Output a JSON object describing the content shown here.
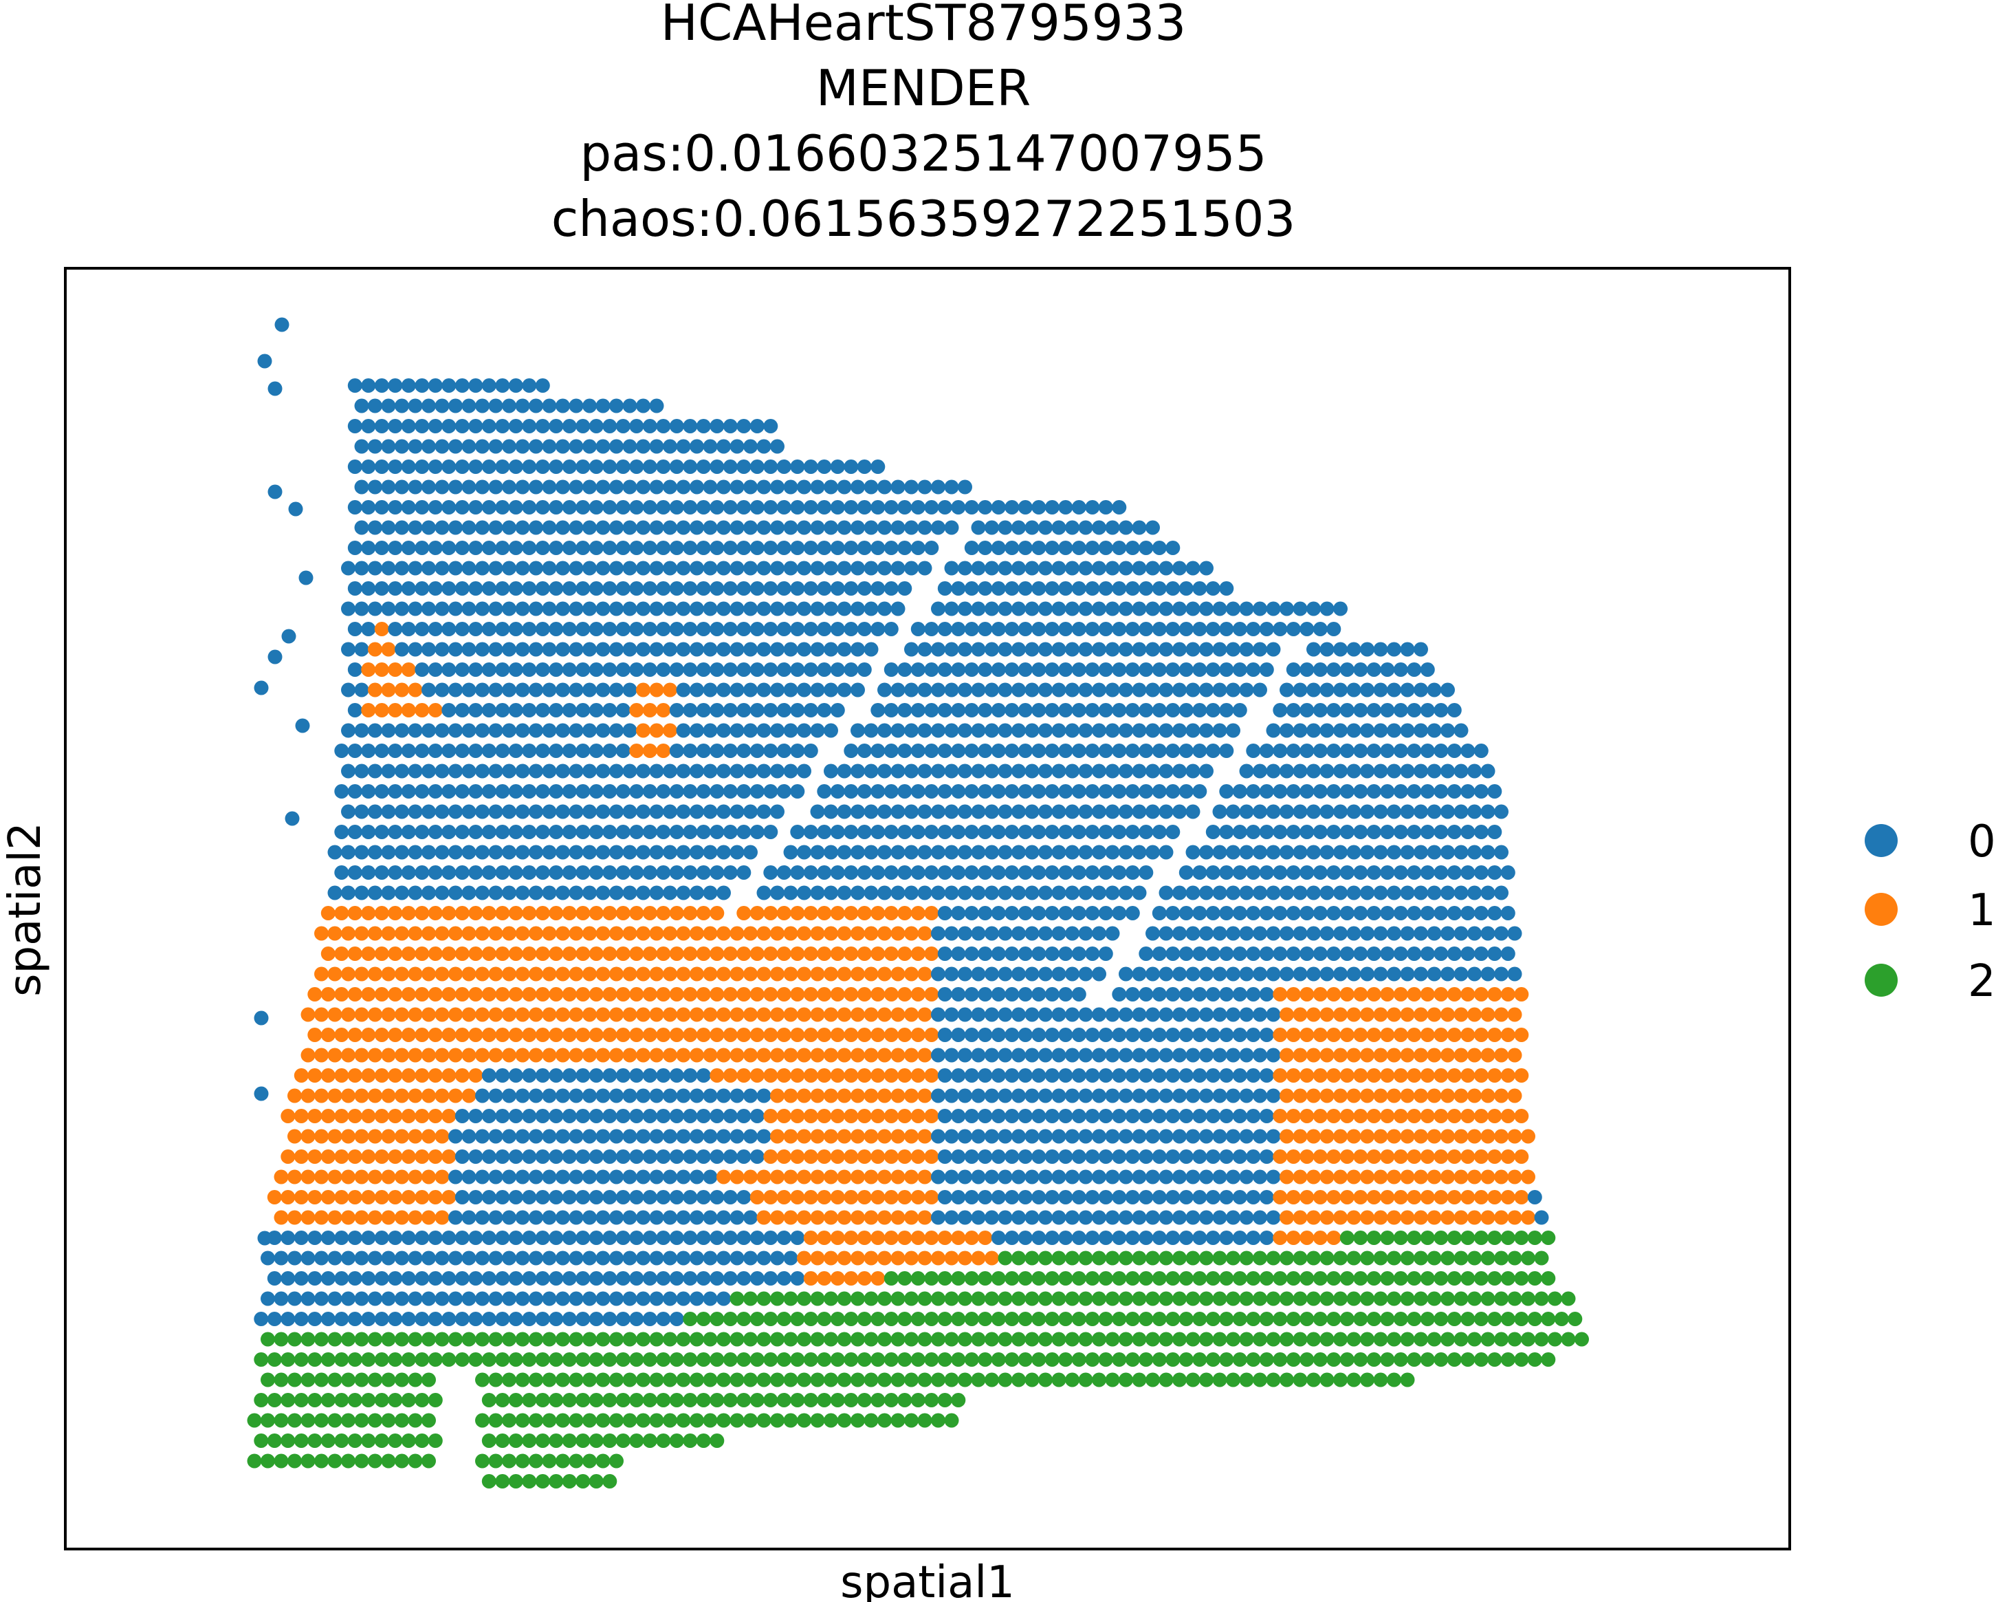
{
  "chart_data": {
    "type": "scatter",
    "title_lines": [
      "HCAHeartST8795933",
      "MENDER",
      "pas:0.01660325147007955",
      "chaos:0.06156359272251503"
    ],
    "xlabel": "spatial1",
    "ylabel": "spatial2",
    "legend": {
      "placement": "right",
      "entries": [
        {
          "label": "0",
          "color": "#1f77b4"
        },
        {
          "label": "1",
          "color": "#ff7f0e"
        },
        {
          "label": "2",
          "color": "#2ca02c"
        }
      ]
    },
    "grid": false,
    "ticks": false,
    "description_of_layout": "",
    "series": [
      {
        "name": "0",
        "color": "#1f77b4"
      },
      {
        "name": "1",
        "color": "#ff7f0e"
      },
      {
        "name": "2",
        "color": "#2ca02c"
      }
    ]
  }
}
